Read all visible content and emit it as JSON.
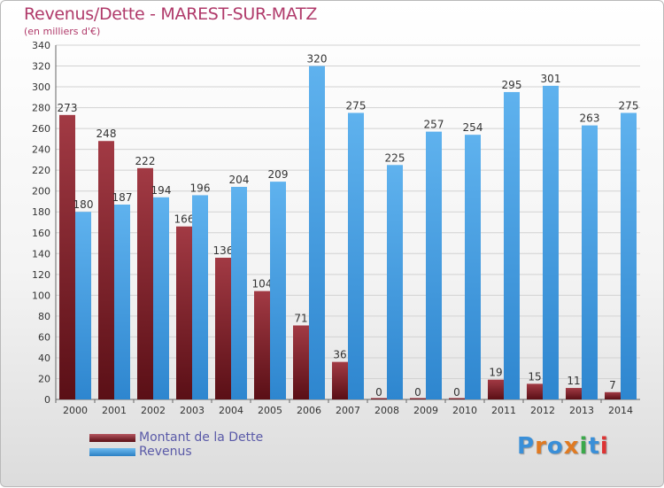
{
  "header": {
    "title": "Revenus/Dette - MAREST-SUR-MATZ",
    "subtitle": "(en milliers d'€)"
  },
  "legend": {
    "debt_label": "Montant de la Dette",
    "revenue_label": "Revenus"
  },
  "logo": {
    "text": "Proxiti"
  },
  "colors": {
    "debt_top": "#a23a44",
    "debt_bottom": "#5a0f16",
    "revenue_top": "#5fb2ee",
    "revenue_bottom": "#2e86cf",
    "title": "#b03a6a"
  },
  "chart_data": {
    "type": "bar",
    "categories": [
      "2000",
      "2001",
      "2002",
      "2003",
      "2004",
      "2005",
      "2006",
      "2007",
      "2008",
      "2009",
      "2010",
      "2011",
      "2012",
      "2013",
      "2014"
    ],
    "series": [
      {
        "name": "Montant de la Dette",
        "values": [
          273,
          248,
          222,
          166,
          136,
          104,
          71,
          36,
          0,
          0,
          0,
          19,
          15,
          11,
          7
        ]
      },
      {
        "name": "Revenus",
        "values": [
          180,
          187,
          194,
          196,
          204,
          209,
          320,
          275,
          225,
          257,
          254,
          295,
          301,
          263,
          275
        ]
      }
    ],
    "yticks": [
      0,
      20,
      40,
      60,
      80,
      100,
      120,
      140,
      160,
      180,
      200,
      220,
      240,
      260,
      280,
      300,
      320,
      340
    ],
    "ylim": [
      0,
      340
    ],
    "grid": true,
    "legend_position": "bottom-left"
  }
}
